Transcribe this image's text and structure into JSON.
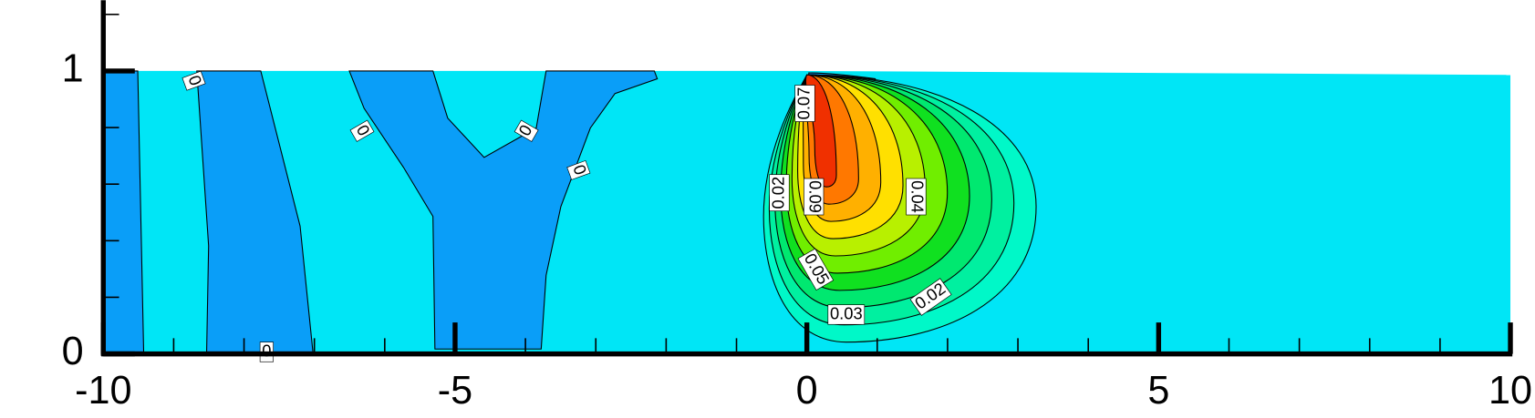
{
  "chart_data": {
    "type": "contour",
    "xlim": [
      -10,
      10
    ],
    "ylim": [
      0,
      1.25
    ],
    "xticks": [
      -10,
      -5,
      0,
      5,
      10
    ],
    "yticks": [
      0,
      1
    ],
    "xminorticks": [
      -9,
      -8,
      -7,
      -6,
      -4,
      -3,
      -2,
      -1,
      1,
      2,
      3,
      4,
      6,
      7,
      8,
      9
    ],
    "yminorticks": [
      0.2,
      0.4,
      0.6,
      0.8,
      1.2
    ],
    "levels": [
      0.01,
      0.02,
      0.03,
      0.04,
      0.05,
      0.06,
      0.07,
      0.08,
      0.09,
      0.1
    ],
    "colors": [
      "#00f8c8",
      "#00f0a0",
      "#00e870",
      "#10e020",
      "#70ee00",
      "#b8f000",
      "#ffe000",
      "#ffb000",
      "#ff7800",
      "#f03000"
    ],
    "contour_labels": [
      0,
      0,
      0,
      0,
      0,
      0.07,
      0.02,
      0.09,
      0.04,
      0.05,
      0.03,
      0.02
    ]
  }
}
